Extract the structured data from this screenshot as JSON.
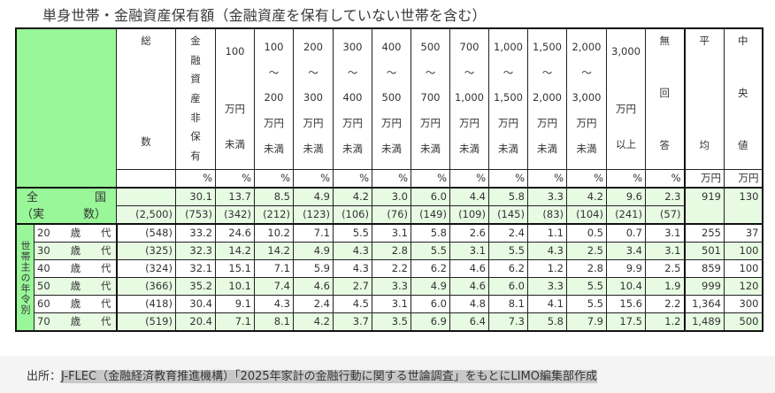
{
  "title": "単身世帯・金融資産保有額（金融資産を保有していない世帯を含む）",
  "colors": {
    "header_green": "#99f799",
    "row_green": "#e7fbe3",
    "border": "#222222",
    "footer_bg": "#f4f4f4",
    "highlight": "#c8c8c8"
  },
  "header": {
    "total": [
      "総",
      "数"
    ],
    "non_holding": [
      "金",
      "融",
      "資",
      "産",
      "非",
      "保",
      "有"
    ],
    "ranges": [
      [
        "100",
        "",
        "万円",
        "未満"
      ],
      [
        "100",
        "〜",
        "200",
        "万円",
        "未満"
      ],
      [
        "200",
        "〜",
        "300",
        "万円",
        "未満"
      ],
      [
        "300",
        "〜",
        "400",
        "万円",
        "未満"
      ],
      [
        "400",
        "〜",
        "500",
        "万円",
        "未満"
      ],
      [
        "500",
        "〜",
        "700",
        "万円",
        "未満"
      ],
      [
        "700",
        "〜",
        "1,000",
        "万円",
        "未満"
      ],
      [
        "1,000",
        "〜",
        "1,500",
        "万円",
        "未満"
      ],
      [
        "1,500",
        "〜",
        "2,000",
        "万円",
        "未満"
      ],
      [
        "2,000",
        "〜",
        "3,000",
        "万円",
        "未満"
      ],
      [
        "3,000",
        "",
        "万円",
        "以上"
      ]
    ],
    "no_answer": [
      "無",
      "回",
      "答"
    ],
    "mean": [
      "平",
      "均"
    ],
    "median": [
      "中",
      "央",
      "値"
    ],
    "units": [
      "%",
      "%",
      "%",
      "%",
      "%",
      "%",
      "%",
      "%",
      "%",
      "%",
      "%",
      "%",
      "%",
      "万円",
      "万円"
    ]
  },
  "national": {
    "label_line1_a": "全",
    "label_line1_b": "国",
    "label_line2_a": "（実",
    "label_line2_b": "数）",
    "total": "(2,500)",
    "percents": [
      "30.1",
      "13.7",
      "8.5",
      "4.9",
      "4.2",
      "3.0",
      "6.0",
      "4.4",
      "5.8",
      "3.3",
      "4.2",
      "9.6",
      "2.3"
    ],
    "counts": [
      "(753)",
      "(342)",
      "(212)",
      "(123)",
      "(106)",
      "(76)",
      "(149)",
      "(109)",
      "(145)",
      "(83)",
      "(104)",
      "(241)",
      "(57)"
    ],
    "mean": "919",
    "median": "130"
  },
  "side_label": "世帯主の年令別",
  "age_rows": [
    {
      "age": "20",
      "sai": "歳",
      "dai": "代",
      "total": "(548)",
      "values": [
        "33.2",
        "24.6",
        "10.2",
        "7.1",
        "5.5",
        "3.1",
        "5.8",
        "2.6",
        "2.4",
        "1.1",
        "0.5",
        "0.7",
        "3.1"
      ],
      "mean": "255",
      "median": "37"
    },
    {
      "age": "30",
      "sai": "歳",
      "dai": "代",
      "total": "(325)",
      "values": [
        "32.3",
        "14.2",
        "14.2",
        "4.9",
        "4.3",
        "2.8",
        "5.5",
        "3.1",
        "5.5",
        "4.3",
        "2.5",
        "3.4",
        "3.1"
      ],
      "mean": "501",
      "median": "100"
    },
    {
      "age": "40",
      "sai": "歳",
      "dai": "代",
      "total": "(324)",
      "values": [
        "32.1",
        "15.1",
        "7.1",
        "5.9",
        "4.3",
        "2.2",
        "6.2",
        "4.6",
        "6.2",
        "1.2",
        "2.8",
        "9.9",
        "2.5"
      ],
      "mean": "859",
      "median": "100"
    },
    {
      "age": "50",
      "sai": "歳",
      "dai": "代",
      "total": "(366)",
      "values": [
        "35.2",
        "10.1",
        "7.4",
        "4.6",
        "2.7",
        "3.3",
        "4.9",
        "4.6",
        "6.0",
        "3.3",
        "5.5",
        "10.4",
        "1.9"
      ],
      "mean": "999",
      "median": "120"
    },
    {
      "age": "60",
      "sai": "歳",
      "dai": "代",
      "total": "(418)",
      "values": [
        "30.4",
        "9.1",
        "4.3",
        "2.4",
        "4.5",
        "3.1",
        "6.0",
        "4.8",
        "8.1",
        "4.1",
        "5.5",
        "15.6",
        "2.2"
      ],
      "mean": "1,364",
      "median": "300"
    },
    {
      "age": "70",
      "sai": "歳",
      "dai": "代",
      "total": "(519)",
      "values": [
        "20.4",
        "7.1",
        "8.1",
        "4.2",
        "3.7",
        "3.5",
        "6.9",
        "6.4",
        "7.3",
        "5.8",
        "7.9",
        "17.5",
        "1.2"
      ],
      "mean": "1,489",
      "median": "500"
    }
  ],
  "footer": {
    "prefix": "出所：",
    "source": "J-FLEC（金融経済教育推進機構）「2025年家計の金融行動に関する世論調査」をもとにLIMO編集部作成"
  }
}
